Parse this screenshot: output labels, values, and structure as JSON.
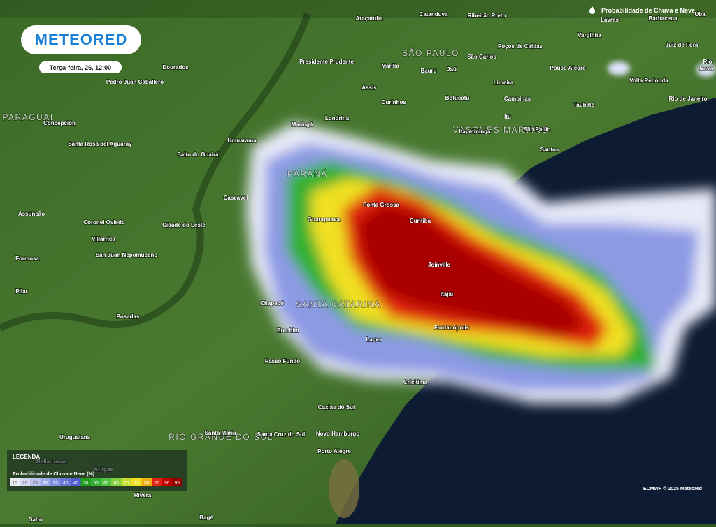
{
  "header": {
    "logo": "METEORED",
    "timestamp": "Terça-feira, 26, 12:00",
    "layer": "Probabilidade de Chuva e Neve"
  },
  "regions": [
    "SÃO PAULO",
    "PARANÁ",
    "SANTA CATARINA",
    "RIO GRANDE DO SUL",
    "PARAGUAI",
    "VASQUES MARTINS"
  ],
  "cities": [
    "Araçatuba",
    "Catanduva",
    "Ribeirão Preto",
    "Lavras",
    "Barbacena",
    "Varginha",
    "Juiz de Fora",
    "São Carlos",
    "Poços de Caldas",
    "Pouso Alegre",
    "Presidente Prudente",
    "Marília",
    "Bauru",
    "Jaú",
    "Dourados",
    "Pedro Juan Caballero",
    "Assis",
    "Ourinhos",
    "Botucatu",
    "Limeira",
    "Volta Redonda",
    "Campinas",
    "Taubaté",
    "Rio de Janeiro",
    "Concepción",
    "Londrina",
    "Maringá",
    "Itu",
    "Itapetininga",
    "São Paulo",
    "Santa Rosa del Aguaray",
    "Umuarama",
    "Salto do Guairá",
    "Santos",
    "Cascavel",
    "Assunção",
    "Ponta Grossa",
    "Guarapuava",
    "Curitiba",
    "Coronel Oviedo",
    "Cidade do Leste",
    "Villarrica",
    "San Juan Nepomuceno",
    "Formosa",
    "Joinville",
    "Pilar",
    "Itajaí",
    "Chapecó",
    "Posadas",
    "Florianópolis",
    "Erechim",
    "Lages",
    "Passo Fundo",
    "Criciúma",
    "Caxias do Sul",
    "Santa Maria",
    "Santa Cruz do Sul",
    "Novo Hamburgo",
    "Uruguaiana",
    "Porto Alegre",
    "Bella Unión",
    "Artigas",
    "Rivera",
    "Salto",
    "Bagé",
    "Uba",
    "Nova",
    "Rio"
  ],
  "legend": {
    "title": "LEGENDA",
    "subtitle": "Probabilidade de Chuva e Neve (%)",
    "values": [
      15,
      20,
      25,
      30,
      35,
      40,
      45,
      50,
      55,
      60,
      65,
      70,
      75,
      80,
      85,
      90,
      95
    ],
    "colors": [
      "#ececf8",
      "#d4d8f2",
      "#bcc4ee",
      "#9ea9e8",
      "#8090e0",
      "#6676d6",
      "#4f5ccc",
      "#20a020",
      "#34b034",
      "#50c040",
      "#84d040",
      "#c4e030",
      "#f0e020",
      "#f0b010",
      "#e02010",
      "#c00000",
      "#900000"
    ]
  },
  "credit": "ECMWF © 2025 Meteored"
}
